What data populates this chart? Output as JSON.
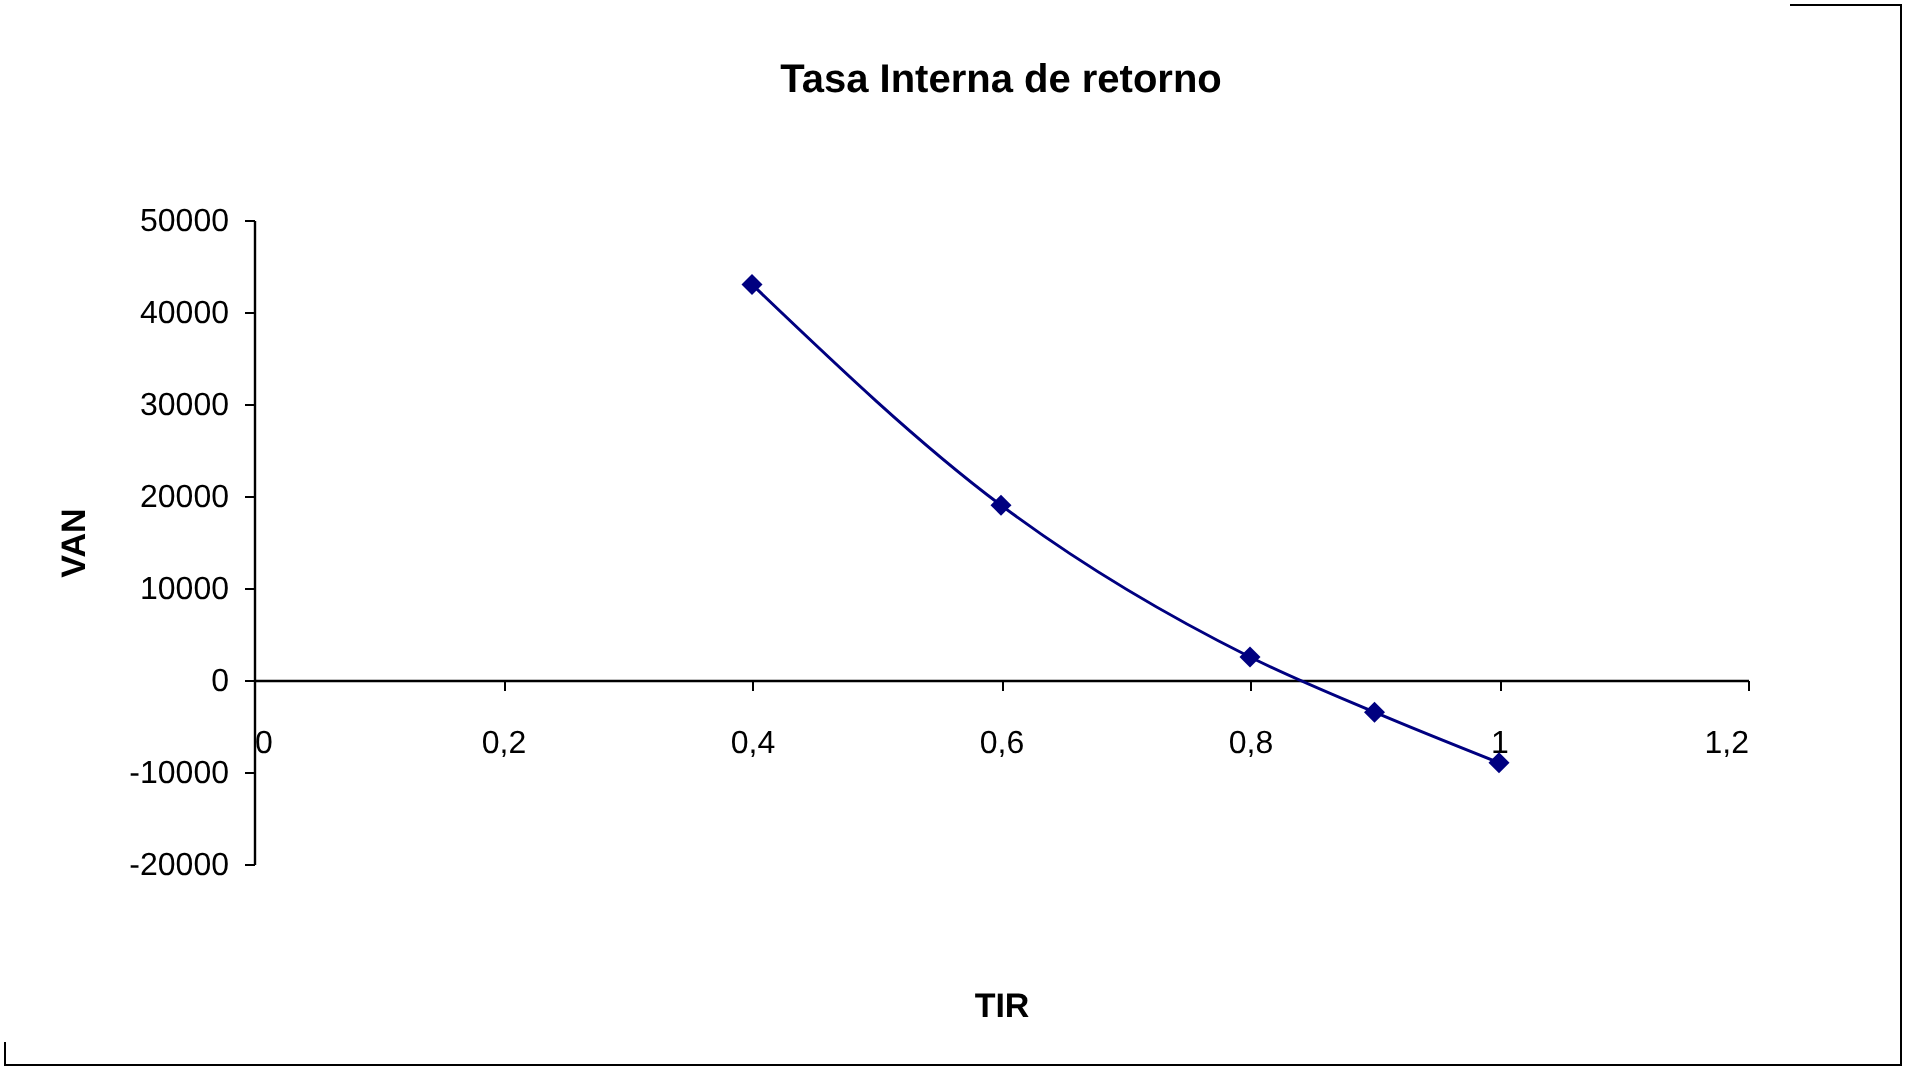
{
  "chart_data": {
    "type": "line",
    "title": "Tasa Interna de retorno",
    "xlabel": "TIR",
    "ylabel": "VAN",
    "x": [
      0.4,
      0.6,
      0.8,
      0.9,
      1
    ],
    "series": [
      {
        "color": "#000080",
        "values": [
          43000,
          19000,
          2500,
          -3500,
          -9000
        ]
      }
    ],
    "xlim": [
      0,
      1.2
    ],
    "xticks": [
      {
        "value": 0,
        "label": "0"
      },
      {
        "value": 0.2,
        "label": "0,2"
      },
      {
        "value": 0.4,
        "label": "0,4"
      },
      {
        "value": 0.6,
        "label": "0,6"
      },
      {
        "value": 0.8,
        "label": "0,8"
      },
      {
        "value": 1,
        "label": "1"
      },
      {
        "value": 1.2,
        "label": "1,2"
      }
    ],
    "ylim": [
      -20000,
      50000
    ],
    "yticks": [
      -20000,
      -10000,
      0,
      10000,
      20000,
      30000,
      40000,
      50000
    ],
    "grid": false,
    "legend": false,
    "marker": "diamond",
    "line_style": "solid"
  }
}
